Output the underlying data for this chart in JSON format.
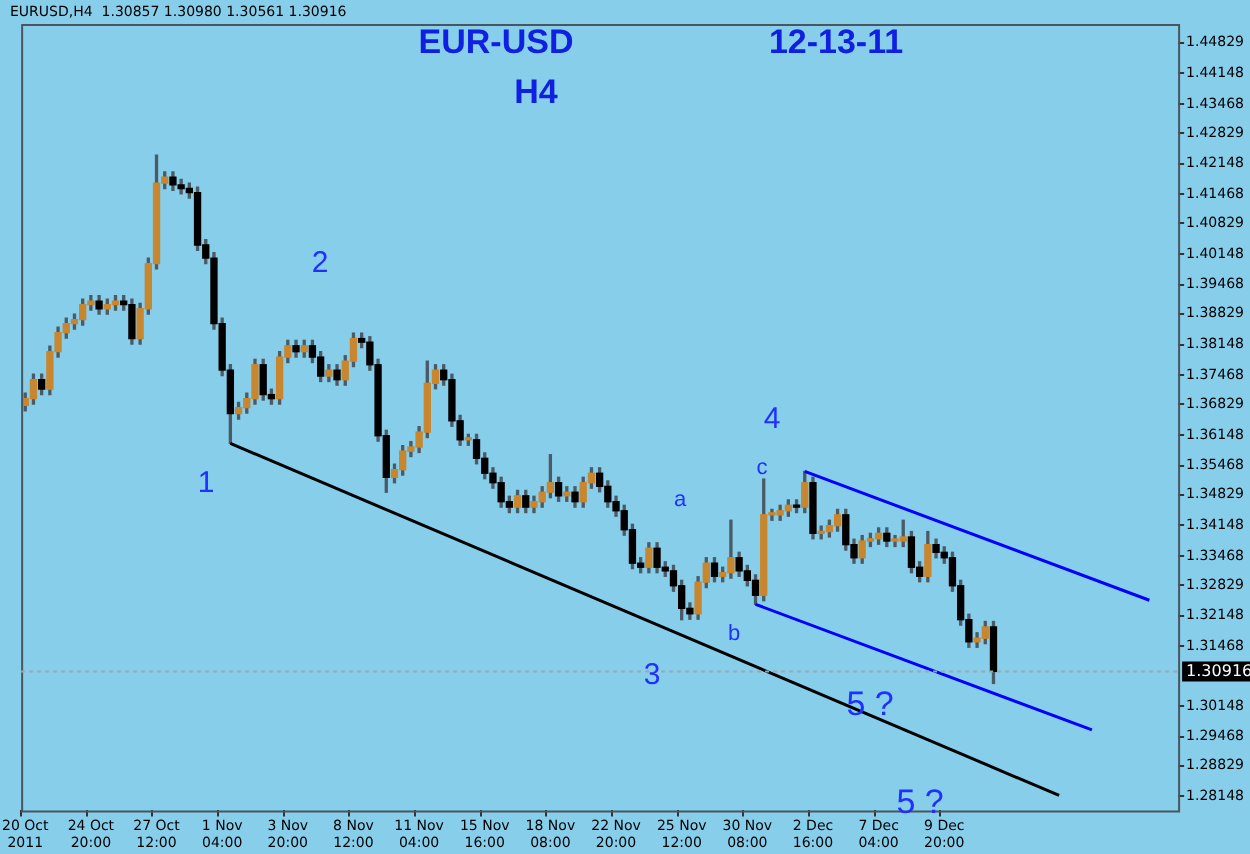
{
  "chart_data": {
    "type": "candlestick",
    "title": "EUR-USD",
    "subtitle": "H4",
    "annotations": [
      "12-13-11",
      "1",
      "2",
      "3",
      "4",
      "5 ?",
      "5 ?",
      "a",
      "b",
      "c",
      "EURUSD,H4  1.30857 1.30980 1.30561 1.30916"
    ],
    "categories": [
      "20 Oct 2011",
      null,
      null,
      null,
      null,
      null,
      null,
      null,
      "24 Oct 20:00",
      null,
      null,
      null,
      null,
      null,
      null,
      null,
      "27 Oct 12:00",
      null,
      null,
      null,
      null,
      null,
      null,
      null,
      "1 Nov 04:00",
      null,
      null,
      null,
      null,
      null,
      null,
      null,
      "3 Nov 20:00",
      null,
      null,
      null,
      null,
      null,
      null,
      null,
      "8 Nov 12:00",
      null,
      null,
      null,
      null,
      null,
      null,
      null,
      "11 Nov 04:00",
      null,
      null,
      null,
      null,
      null,
      null,
      null,
      "15 Nov 16:00",
      null,
      null,
      null,
      null,
      null,
      null,
      null,
      "18 Nov 08:00",
      null,
      null,
      null,
      null,
      null,
      null,
      null,
      "22 Nov 20:00",
      null,
      null,
      null,
      null,
      null,
      null,
      null,
      "25 Nov 12:00",
      null,
      null,
      null,
      null,
      null,
      null,
      null,
      "30 Nov 08:00",
      null,
      null,
      null,
      null,
      null,
      null,
      null,
      "2 Dec 16:00",
      null,
      null,
      null,
      null,
      null,
      null,
      null,
      "7 Dec 04:00",
      null,
      null,
      null,
      null,
      null,
      null,
      null,
      "9 Dec 20:00",
      null,
      null,
      null,
      null,
      null,
      null,
      null,
      null,
      null,
      null,
      null,
      null,
      null,
      null,
      null,
      null,
      null,
      null,
      null,
      null,
      null,
      null,
      null,
      null,
      null,
      null,
      null,
      null
    ],
    "ohlc": [
      [
        1.368,
        1.3707,
        1.3668,
        1.3695
      ],
      [
        1.3695,
        1.3749,
        1.3683,
        1.3737
      ],
      [
        1.3737,
        1.3749,
        1.3704,
        1.3716
      ],
      [
        1.3716,
        1.3811,
        1.3704,
        1.3799
      ],
      [
        1.3799,
        1.3853,
        1.3787,
        1.3841
      ],
      [
        1.3841,
        1.3873,
        1.3829,
        1.3861
      ],
      [
        1.3861,
        1.3882,
        1.3849,
        1.387
      ],
      [
        1.387,
        1.3915,
        1.3858,
        1.3903
      ],
      [
        1.3903,
        1.3923,
        1.3891,
        1.3911
      ],
      [
        1.3911,
        1.3923,
        1.3882,
        1.3894
      ],
      [
        1.3894,
        1.3915,
        1.3882,
        1.3903
      ],
      [
        1.3903,
        1.3923,
        1.3891,
        1.3911
      ],
      [
        1.3911,
        1.3923,
        1.3891,
        1.3903
      ],
      [
        1.3903,
        1.3915,
        1.3816,
        1.3828
      ],
      [
        1.3828,
        1.3906,
        1.3816,
        1.3894
      ],
      [
        1.3894,
        1.4006,
        1.3882,
        1.3994
      ],
      [
        1.3994,
        1.4234,
        1.3982,
        1.4172
      ],
      [
        1.4172,
        1.4197,
        1.416,
        1.4185
      ],
      [
        1.4185,
        1.4197,
        1.4156,
        1.4168
      ],
      [
        1.4168,
        1.418,
        1.4148,
        1.416
      ],
      [
        1.416,
        1.4172,
        1.4139,
        1.4151
      ],
      [
        1.4151,
        1.4163,
        1.4023,
        1.4035
      ],
      [
        1.4035,
        1.4047,
        1.3994,
        1.4006
      ],
      [
        1.4006,
        1.4018,
        1.3849,
        1.3861
      ],
      [
        1.3861,
        1.3873,
        1.3746,
        1.3758
      ],
      [
        1.3758,
        1.377,
        1.3596,
        1.3662
      ],
      [
        1.3662,
        1.3687,
        1.365,
        1.3675
      ],
      [
        1.3675,
        1.3707,
        1.3663,
        1.3695
      ],
      [
        1.3695,
        1.3782,
        1.3683,
        1.377
      ],
      [
        1.377,
        1.3782,
        1.3692,
        1.3704
      ],
      [
        1.3704,
        1.3716,
        1.3683,
        1.3695
      ],
      [
        1.3695,
        1.3799,
        1.3683,
        1.3787
      ],
      [
        1.3787,
        1.3824,
        1.3775,
        1.3812
      ],
      [
        1.3812,
        1.3824,
        1.3787,
        1.3799
      ],
      [
        1.3799,
        1.3824,
        1.3787,
        1.3812
      ],
      [
        1.3812,
        1.3824,
        1.3775,
        1.3787
      ],
      [
        1.3787,
        1.3799,
        1.3733,
        1.3745
      ],
      [
        1.3745,
        1.377,
        1.3733,
        1.3758
      ],
      [
        1.3758,
        1.377,
        1.3725,
        1.3737
      ],
      [
        1.3737,
        1.379,
        1.3725,
        1.3778
      ],
      [
        1.3778,
        1.384,
        1.3766,
        1.3828
      ],
      [
        1.3828,
        1.384,
        1.3808,
        1.382
      ],
      [
        1.382,
        1.3832,
        1.3758,
        1.377
      ],
      [
        1.377,
        1.3782,
        1.3601,
        1.3613
      ],
      [
        1.3613,
        1.3625,
        1.3488,
        1.3521
      ],
      [
        1.3521,
        1.355,
        1.3509,
        1.3538
      ],
      [
        1.3538,
        1.3591,
        1.3526,
        1.3579
      ],
      [
        1.3579,
        1.36,
        1.3567,
        1.3588
      ],
      [
        1.3588,
        1.3633,
        1.3576,
        1.3621
      ],
      [
        1.3621,
        1.3778,
        1.3609,
        1.3729
      ],
      [
        1.3729,
        1.377,
        1.3717,
        1.3758
      ],
      [
        1.3758,
        1.377,
        1.3725,
        1.3737
      ],
      [
        1.3737,
        1.3749,
        1.3634,
        1.3646
      ],
      [
        1.3646,
        1.3658,
        1.3592,
        1.3604
      ],
      [
        1.3604,
        1.3616,
        1.3592,
        1.3604
      ],
      [
        1.3604,
        1.3616,
        1.3551,
        1.3563
      ],
      [
        1.3563,
        1.3575,
        1.3518,
        1.353
      ],
      [
        1.353,
        1.3542,
        1.3497,
        1.3509
      ],
      [
        1.3509,
        1.3521,
        1.3455,
        1.3467
      ],
      [
        1.3467,
        1.3479,
        1.3443,
        1.3455
      ],
      [
        1.3455,
        1.3492,
        1.3443,
        1.348
      ],
      [
        1.348,
        1.3492,
        1.3443,
        1.3455
      ],
      [
        1.3455,
        1.3479,
        1.3443,
        1.3467
      ],
      [
        1.3467,
        1.35,
        1.3455,
        1.3488
      ],
      [
        1.3488,
        1.3571,
        1.3476,
        1.3509
      ],
      [
        1.3509,
        1.3521,
        1.3468,
        1.348
      ],
      [
        1.348,
        1.35,
        1.3468,
        1.3488
      ],
      [
        1.3488,
        1.35,
        1.3455,
        1.3467
      ],
      [
        1.3467,
        1.3521,
        1.3455,
        1.3509
      ],
      [
        1.3509,
        1.3542,
        1.3497,
        1.353
      ],
      [
        1.353,
        1.3542,
        1.3489,
        1.3501
      ],
      [
        1.3501,
        1.3513,
        1.3455,
        1.3467
      ],
      [
        1.3467,
        1.3479,
        1.3435,
        1.3447
      ],
      [
        1.3447,
        1.3459,
        1.3393,
        1.3405
      ],
      [
        1.3405,
        1.3417,
        1.3319,
        1.3331
      ],
      [
        1.3331,
        1.3343,
        1.331,
        1.3322
      ],
      [
        1.3322,
        1.3376,
        1.331,
        1.3364
      ],
      [
        1.3364,
        1.3376,
        1.331,
        1.3322
      ],
      [
        1.3322,
        1.3334,
        1.3302,
        1.3314
      ],
      [
        1.3314,
        1.3326,
        1.3269,
        1.3281
      ],
      [
        1.3281,
        1.3293,
        1.3206,
        1.3231
      ],
      [
        1.3231,
        1.3243,
        1.3207,
        1.3219
      ],
      [
        1.3219,
        1.3301,
        1.3207,
        1.3289
      ],
      [
        1.3289,
        1.3343,
        1.3277,
        1.3331
      ],
      [
        1.3331,
        1.3343,
        1.329,
        1.3302
      ],
      [
        1.3302,
        1.3322,
        1.329,
        1.331
      ],
      [
        1.331,
        1.3426,
        1.3298,
        1.3343
      ],
      [
        1.3343,
        1.3355,
        1.3302,
        1.3314
      ],
      [
        1.3314,
        1.3326,
        1.3281,
        1.3293
      ],
      [
        1.3293,
        1.3305,
        1.324,
        1.326
      ],
      [
        1.326,
        1.3517,
        1.3248,
        1.3438
      ],
      [
        1.3438,
        1.345,
        1.3426,
        1.3438
      ],
      [
        1.3438,
        1.3459,
        1.3426,
        1.3447
      ],
      [
        1.3447,
        1.3471,
        1.3435,
        1.3459
      ],
      [
        1.3459,
        1.3471,
        1.3443,
        1.3455
      ],
      [
        1.3455,
        1.3534,
        1.3443,
        1.3509
      ],
      [
        1.3509,
        1.3521,
        1.3385,
        1.3397
      ],
      [
        1.3397,
        1.3413,
        1.3385,
        1.3401
      ],
      [
        1.3401,
        1.3426,
        1.3389,
        1.3414
      ],
      [
        1.3414,
        1.345,
        1.3402,
        1.3438
      ],
      [
        1.3438,
        1.345,
        1.336,
        1.3372
      ],
      [
        1.3372,
        1.3384,
        1.3331,
        1.3343
      ],
      [
        1.3343,
        1.3392,
        1.3331,
        1.338
      ],
      [
        1.338,
        1.3397,
        1.3368,
        1.3385
      ],
      [
        1.3385,
        1.3409,
        1.3373,
        1.3397
      ],
      [
        1.3397,
        1.3409,
        1.3368,
        1.338
      ],
      [
        1.338,
        1.3392,
        1.3368,
        1.338
      ],
      [
        1.338,
        1.3426,
        1.3368,
        1.3389
      ],
      [
        1.3389,
        1.3401,
        1.331,
        1.3322
      ],
      [
        1.3322,
        1.3334,
        1.329,
        1.3302
      ],
      [
        1.3302,
        1.3401,
        1.329,
        1.3372
      ],
      [
        1.3372,
        1.3384,
        1.3343,
        1.3355
      ],
      [
        1.3355,
        1.3367,
        1.3331,
        1.3343
      ],
      [
        1.3343,
        1.3355,
        1.3269,
        1.3281
      ],
      [
        1.3281,
        1.3293,
        1.3194,
        1.3206
      ],
      [
        1.3206,
        1.3218,
        1.3145,
        1.3157
      ],
      [
        1.3157,
        1.3177,
        1.3145,
        1.3165
      ],
      [
        1.3165,
        1.3202,
        1.3153,
        1.319
      ],
      [
        1.319,
        1.3202,
        1.3065,
        1.30916
      ],
      null,
      null,
      null,
      null,
      null,
      null,
      null,
      null,
      null,
      null,
      null,
      null,
      null,
      null,
      null,
      null,
      null,
      null,
      null,
      null,
      null,
      null
    ],
    "series": [
      {
        "type": "line",
        "color": "#000000",
        "values": [
          null,
          null,
          null,
          null,
          null,
          null,
          null,
          null,
          null,
          null,
          null,
          null,
          null,
          null,
          null,
          null,
          null,
          null,
          null,
          null,
          null,
          null,
          null,
          null,
          null,
          1.3596,
          null,
          null,
          null,
          null,
          null,
          null,
          null,
          null,
          null,
          null,
          null,
          null,
          null,
          null,
          null,
          null,
          null,
          null,
          null,
          null,
          null,
          null,
          null,
          null,
          null,
          null,
          null,
          null,
          null,
          null,
          null,
          null,
          null,
          null,
          null,
          null,
          null,
          null,
          null,
          null,
          null,
          null,
          null,
          null,
          null,
          null,
          null,
          null,
          null,
          null,
          null,
          null,
          null,
          null,
          null,
          null,
          null,
          null,
          null,
          null,
          null,
          null,
          null,
          null,
          null,
          null,
          null,
          null,
          null,
          null,
          null,
          null,
          null,
          null,
          null,
          null,
          null,
          null,
          null,
          null,
          null,
          null,
          null,
          null,
          null,
          null,
          null,
          null,
          null,
          null,
          null,
          null,
          null,
          null,
          null,
          null,
          null,
          null,
          null,
          null,
          1.2817,
          null,
          null,
          null,
          null,
          null,
          null,
          null,
          null,
          null,
          null,
          null,
          null,
          null,
          null
        ]
      },
      {
        "type": "line",
        "color": "#0000ff",
        "values": [
          null,
          null,
          null,
          null,
          null,
          null,
          null,
          null,
          null,
          null,
          null,
          null,
          null,
          null,
          null,
          null,
          null,
          null,
          null,
          null,
          null,
          null,
          null,
          null,
          null,
          null,
          null,
          null,
          null,
          null,
          null,
          null,
          null,
          null,
          null,
          null,
          null,
          null,
          null,
          null,
          null,
          null,
          null,
          null,
          null,
          null,
          null,
          null,
          null,
          null,
          null,
          null,
          null,
          null,
          null,
          null,
          null,
          null,
          null,
          null,
          null,
          null,
          null,
          null,
          null,
          null,
          null,
          null,
          null,
          null,
          null,
          null,
          null,
          null,
          null,
          null,
          null,
          null,
          null,
          null,
          null,
          null,
          null,
          null,
          null,
          null,
          null,
          null,
          null,
          null,
          null,
          null,
          null,
          null,
          null,
          1.3534,
          null,
          null,
          null,
          null,
          null,
          null,
          null,
          null,
          null,
          null,
          null,
          null,
          null,
          null,
          null,
          null,
          null,
          null,
          null,
          null,
          null,
          null,
          null,
          null,
          null,
          null,
          null,
          null,
          null,
          null,
          null,
          null,
          null,
          null,
          null,
          null,
          null,
          null,
          null,
          null,
          null,
          1.3249,
          null,
          null,
          null
        ]
      },
      {
        "type": "line",
        "color": "#0000ff",
        "values": [
          null,
          null,
          null,
          null,
          null,
          null,
          null,
          null,
          null,
          null,
          null,
          null,
          null,
          null,
          null,
          null,
          null,
          null,
          null,
          null,
          null,
          null,
          null,
          null,
          null,
          null,
          null,
          null,
          null,
          null,
          null,
          null,
          null,
          null,
          null,
          null,
          null,
          null,
          null,
          null,
          null,
          null,
          null,
          null,
          null,
          null,
          null,
          null,
          null,
          null,
          null,
          null,
          null,
          null,
          null,
          null,
          null,
          null,
          null,
          null,
          null,
          null,
          null,
          null,
          null,
          null,
          null,
          null,
          null,
          null,
          null,
          null,
          null,
          null,
          null,
          null,
          null,
          null,
          null,
          null,
          null,
          null,
          null,
          null,
          null,
          null,
          null,
          null,
          null,
          1.324,
          null,
          null,
          null,
          null,
          null,
          null,
          null,
          null,
          null,
          null,
          null,
          null,
          null,
          null,
          null,
          null,
          null,
          null,
          null,
          null,
          null,
          null,
          null,
          null,
          null,
          null,
          null,
          null,
          null,
          null,
          null,
          null,
          null,
          null,
          null,
          null,
          null,
          null,
          null,
          null,
          1.2962,
          null,
          null,
          null,
          null,
          null,
          null,
          null,
          null,
          null,
          null
        ]
      }
    ],
    "ylim": [
      1.2784,
      1.4524
    ],
    "yticks": [
      1.44829,
      1.44148,
      1.43468,
      1.42829,
      1.42148,
      1.41468,
      1.40829,
      1.40148,
      1.39468,
      1.38829,
      1.38148,
      1.37468,
      1.36829,
      1.36148,
      1.35468,
      1.34829,
      1.34148,
      1.33468,
      1.32829,
      1.32148,
      1.31468,
      1.30148,
      1.29468,
      1.28829,
      1.28148
    ],
    "ref_lines": [
      {
        "axis": "y",
        "value": 1.30916,
        "label": "1.30916"
      }
    ]
  }
}
